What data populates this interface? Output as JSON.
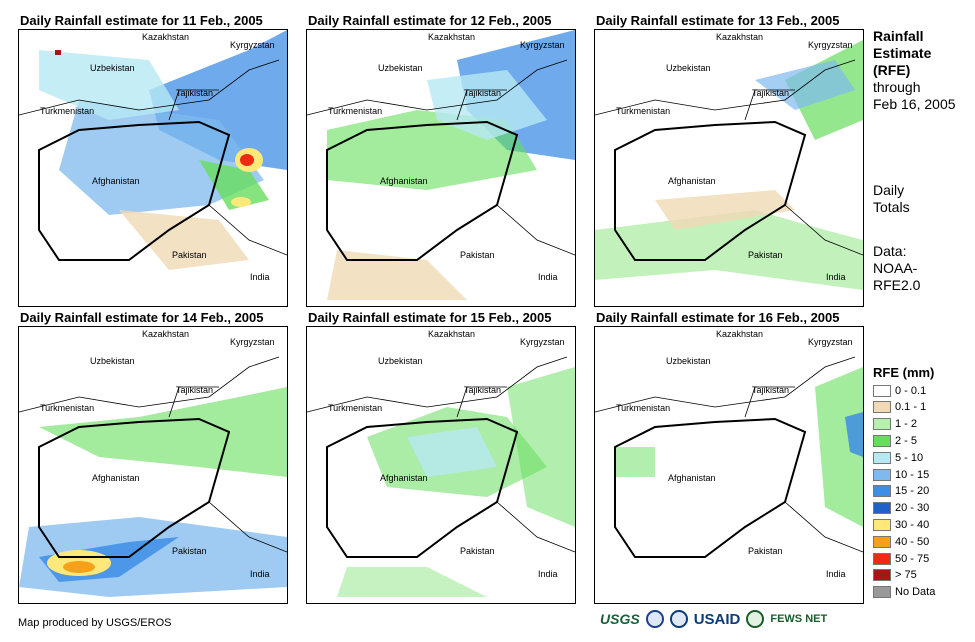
{
  "panels": [
    {
      "title": "Daily Rainfall estimate for 11 Feb., 2005"
    },
    {
      "title": "Daily Rainfall estimate for 12 Feb., 2005"
    },
    {
      "title": "Daily Rainfall estimate for 13 Feb., 2005"
    },
    {
      "title": "Daily Rainfall estimate for 14 Feb., 2005"
    },
    {
      "title": "Daily Rainfall estimate for 15 Feb., 2005"
    },
    {
      "title": "Daily Rainfall estimate for 16 Feb., 2005"
    }
  ],
  "map_labels": {
    "kazakhstan": "Kazakhstan",
    "kyrgyzstan": "Kyrgyzstan",
    "uzbekistan": "Uzbekistan",
    "tajikistan": "Tajikistan",
    "turkmenistan": "Turkmenistan",
    "afghanistan": "Afghanistan",
    "pakistan": "Pakistan",
    "india": "India"
  },
  "side_info": {
    "title_lines": [
      "Rainfall",
      "Estimate",
      "(RFE)"
    ],
    "through": [
      "through",
      "Feb 16, 2005"
    ],
    "totals": [
      "Daily",
      "Totals"
    ],
    "data_source": [
      "Data:",
      "NOAA-",
      "RFE2.0"
    ]
  },
  "legend": {
    "title": "RFE (mm)",
    "items": [
      {
        "label": "0 - 0.1",
        "color": "#ffffff"
      },
      {
        "label": "0.1 - 1",
        "color": "#f0d9b5"
      },
      {
        "label": "1 - 2",
        "color": "#b7efb0"
      },
      {
        "label": "2 - 5",
        "color": "#66dd5c"
      },
      {
        "label": "5 - 10",
        "color": "#b6e8f4"
      },
      {
        "label": "10 - 15",
        "color": "#7fb9ef"
      },
      {
        "label": "15 - 20",
        "color": "#3e8ee5"
      },
      {
        "label": "20 - 30",
        "color": "#2060c8"
      },
      {
        "label": "30 - 40",
        "color": "#ffe87a"
      },
      {
        "label": "40 - 50",
        "color": "#f7a11a"
      },
      {
        "label": "50 - 75",
        "color": "#ee2a12"
      },
      {
        "label": "> 75",
        "color": "#a91414"
      },
      {
        "label": "No Data",
        "color": "#999999"
      }
    ]
  },
  "footer": {
    "credit": "Map produced by USGS/EROS"
  },
  "logos": {
    "usgs": "USGS",
    "usaid": "USAID",
    "fews": "FEWS NET"
  }
}
